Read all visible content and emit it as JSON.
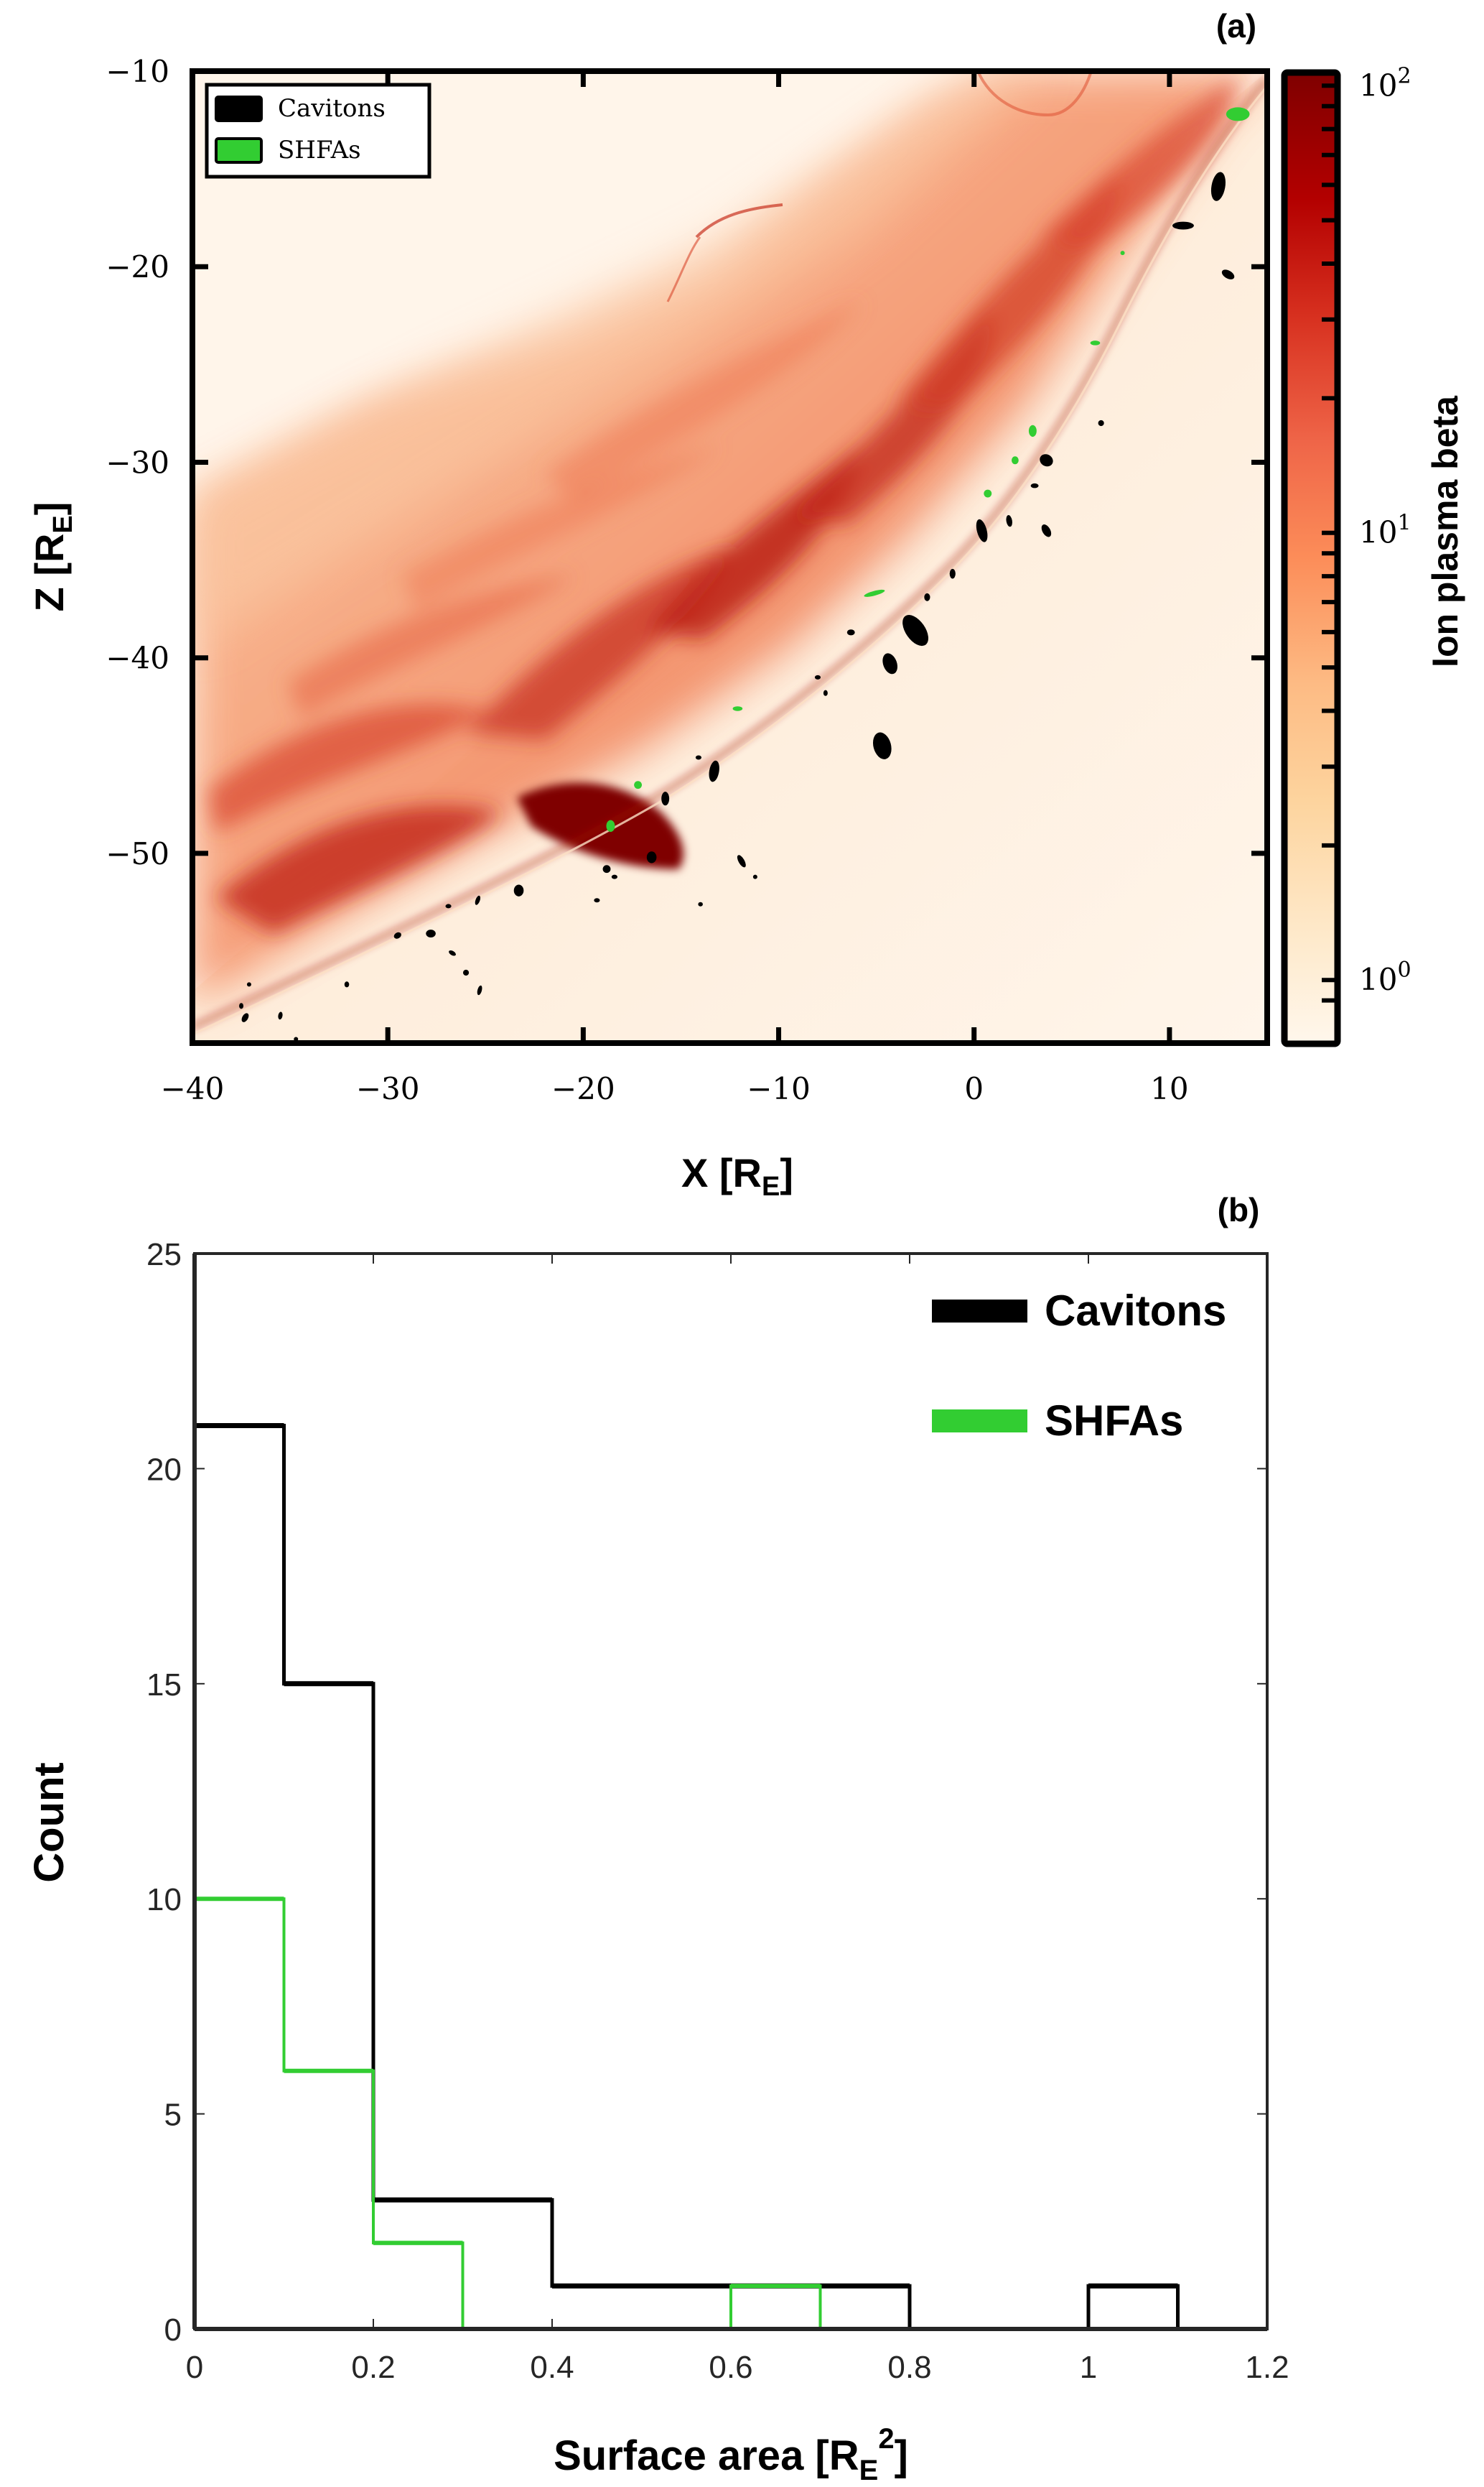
{
  "chart_data": [
    {
      "panel_label": "(a)",
      "type": "heatmap",
      "title": "",
      "xlabel": "X [R_E]",
      "xlabel_main": "X [R",
      "xlabel_sub": "E",
      "xlabel_close": "]",
      "ylabel_main": "Z [R",
      "ylabel_sub": "E",
      "ylabel_close": "]",
      "xlim": [
        -40,
        15
      ],
      "ylim": [
        -59.7,
        -10
      ],
      "xticks": [
        -40,
        -30,
        -20,
        -10,
        0,
        10
      ],
      "xtick_labels": [
        "−40",
        "−30",
        "−20",
        "−10",
        "0",
        "10"
      ],
      "yticks": [
        -10,
        -20,
        -30,
        -40,
        -50
      ],
      "ytick_labels": [
        "−10",
        "−20",
        "−30",
        "−40",
        "−50"
      ],
      "colorbar": {
        "label": "Ion plasma beta",
        "scale": "log",
        "range": [
          0.72,
          107
        ],
        "ticks": [
          1,
          10,
          100
        ],
        "tick_labels": [
          {
            "base": "10",
            "exp": "0"
          },
          {
            "base": "10",
            "exp": "1"
          },
          {
            "base": "10",
            "exp": "2"
          }
        ],
        "minor_ticks": [
          0.9,
          2,
          3,
          4,
          5,
          6,
          7,
          8,
          9,
          20,
          30,
          40,
          50,
          60,
          70,
          80,
          90
        ],
        "colormap": "OrRd",
        "colors": [
          "#fff7ec",
          "#fee8c8",
          "#fdd49e",
          "#fdbb84",
          "#fc8d59",
          "#ef6548",
          "#d7301f",
          "#b30000",
          "#7f0000"
        ]
      },
      "legend": {
        "placement": "top-left",
        "entries": [
          {
            "label": "Cavitons",
            "color": "#000000"
          },
          {
            "label": "SHFAs",
            "color": "#32cd32"
          }
        ]
      },
      "series": [
        {
          "name": "Cavitons",
          "color": "#000000",
          "points": [
            {
              "x": 12.5,
              "z": -15.9,
              "rx": 0.35,
              "rz": 0.75,
              "rot": 10
            },
            {
              "x": 10.7,
              "z": -17.9,
              "rx": 0.55,
              "rz": 0.2,
              "rot": 0
            },
            {
              "x": 13.0,
              "z": -20.4,
              "rx": 0.35,
              "rz": 0.2,
              "rot": 30
            },
            {
              "x": 6.5,
              "z": -28.0,
              "rx": 0.15,
              "rz": 0.15,
              "rot": 0
            },
            {
              "x": 3.7,
              "z": -29.9,
              "rx": 0.35,
              "rz": 0.3,
              "rot": 30
            },
            {
              "x": 3.1,
              "z": -31.2,
              "rx": 0.2,
              "rz": 0.12,
              "rot": 0
            },
            {
              "x": 0.4,
              "z": -33.5,
              "rx": 0.25,
              "rz": 0.6,
              "rot": -15
            },
            {
              "x": 1.8,
              "z": -33.0,
              "rx": 0.15,
              "rz": 0.3,
              "rot": -10
            },
            {
              "x": 3.7,
              "z": -33.5,
              "rx": 0.2,
              "rz": 0.35,
              "rot": -30
            },
            {
              "x": -1.1,
              "z": -35.7,
              "rx": 0.15,
              "rz": 0.25,
              "rot": 0
            },
            {
              "x": -2.4,
              "z": -36.9,
              "rx": 0.15,
              "rz": 0.2,
              "rot": 0
            },
            {
              "x": -3.0,
              "z": -38.6,
              "rx": 0.5,
              "rz": 0.9,
              "rot": -35
            },
            {
              "x": -6.3,
              "z": -38.7,
              "rx": 0.2,
              "rz": 0.15,
              "rot": 0
            },
            {
              "x": -4.3,
              "z": -40.3,
              "rx": 0.35,
              "rz": 0.55,
              "rot": -20
            },
            {
              "x": -8.0,
              "z": -41.0,
              "rx": 0.15,
              "rz": 0.1,
              "rot": 0
            },
            {
              "x": -7.6,
              "z": -41.8,
              "rx": 0.1,
              "rz": 0.15,
              "rot": 0
            },
            {
              "x": -4.7,
              "z": -44.5,
              "rx": 0.45,
              "rz": 0.7,
              "rot": -15
            },
            {
              "x": -13.3,
              "z": -45.8,
              "rx": 0.25,
              "rz": 0.55,
              "rot": 10
            },
            {
              "x": -14.1,
              "z": -45.1,
              "rx": 0.15,
              "rz": 0.1,
              "rot": 0
            },
            {
              "x": -15.8,
              "z": -47.2,
              "rx": 0.2,
              "rz": 0.35,
              "rot": 0
            },
            {
              "x": -16.5,
              "z": -50.2,
              "rx": 0.25,
              "rz": 0.3,
              "rot": 0
            },
            {
              "x": -11.9,
              "z": -50.4,
              "rx": 0.15,
              "rz": 0.35,
              "rot": -30
            },
            {
              "x": -18.8,
              "z": -50.8,
              "rx": 0.2,
              "rz": 0.2,
              "rot": 0
            },
            {
              "x": -18.4,
              "z": -51.2,
              "rx": 0.15,
              "rz": 0.1,
              "rot": 0
            },
            {
              "x": -11.2,
              "z": -51.2,
              "rx": 0.08,
              "rz": 0.08,
              "rot": 0
            },
            {
              "x": -23.3,
              "z": -51.9,
              "rx": 0.25,
              "rz": 0.3,
              "rot": 0
            },
            {
              "x": -25.4,
              "z": -52.4,
              "rx": 0.1,
              "rz": 0.25,
              "rot": 20
            },
            {
              "x": -19.3,
              "z": -52.4,
              "rx": 0.15,
              "rz": 0.08,
              "rot": 0
            },
            {
              "x": -14.0,
              "z": -52.6,
              "rx": 0.12,
              "rz": 0.1,
              "rot": 0
            },
            {
              "x": -26.9,
              "z": -52.7,
              "rx": 0.15,
              "rz": 0.08,
              "rot": 0
            },
            {
              "x": -27.8,
              "z": -54.1,
              "rx": 0.25,
              "rz": 0.2,
              "rot": 0
            },
            {
              "x": -29.5,
              "z": -54.2,
              "rx": 0.2,
              "rz": 0.15,
              "rot": -30
            },
            {
              "x": -26.7,
              "z": -55.1,
              "rx": 0.2,
              "rz": 0.1,
              "rot": 30
            },
            {
              "x": -26.0,
              "z": -56.1,
              "rx": 0.15,
              "rz": 0.15,
              "rot": 0
            },
            {
              "x": -25.3,
              "z": -57.0,
              "rx": 0.1,
              "rz": 0.25,
              "rot": 15
            },
            {
              "x": -32.1,
              "z": -56.7,
              "rx": 0.12,
              "rz": 0.15,
              "rot": 0
            },
            {
              "x": -37.1,
              "z": -56.7,
              "rx": 0.08,
              "rz": 0.1,
              "rot": 0
            },
            {
              "x": -37.5,
              "z": -57.8,
              "rx": 0.1,
              "rz": 0.15,
              "rot": 0
            },
            {
              "x": -37.3,
              "z": -58.4,
              "rx": 0.15,
              "rz": 0.25,
              "rot": 30
            },
            {
              "x": -35.5,
              "z": -58.3,
              "rx": 0.06,
              "rz": 0.2,
              "rot": 10
            },
            {
              "x": -34.7,
              "z": -59.5,
              "rx": 0.1,
              "rz": 0.08,
              "rot": 0
            }
          ]
        },
        {
          "name": "SHFAs",
          "color": "#32cd32",
          "points": [
            {
              "x": 13.5,
              "z": -12.2,
              "rx": 0.6,
              "rz": 0.35,
              "rot": 0
            },
            {
              "x": 7.6,
              "z": -19.3,
              "rx": 0.08,
              "rz": 0.1,
              "rot": 0
            },
            {
              "x": 6.2,
              "z": -23.9,
              "rx": 0.25,
              "rz": 0.12,
              "rot": 0
            },
            {
              "x": 3.0,
              "z": -28.4,
              "rx": 0.2,
              "rz": 0.3,
              "rot": 0
            },
            {
              "x": 2.1,
              "z": -29.9,
              "rx": 0.18,
              "rz": 0.2,
              "rot": 0
            },
            {
              "x": 0.7,
              "z": -31.6,
              "rx": 0.2,
              "rz": 0.2,
              "rot": 0
            },
            {
              "x": -5.1,
              "z": -36.7,
              "rx": 0.55,
              "rz": 0.12,
              "rot": -15
            },
            {
              "x": -12.1,
              "z": -42.6,
              "rx": 0.25,
              "rz": 0.12,
              "rot": 0
            },
            {
              "x": -17.2,
              "z": -46.5,
              "rx": 0.2,
              "rz": 0.2,
              "rot": 0
            },
            {
              "x": -18.6,
              "z": -48.6,
              "rx": 0.22,
              "rz": 0.3,
              "rot": 0
            }
          ]
        }
      ]
    },
    {
      "panel_label": "(b)",
      "type": "bar",
      "histtype": "step",
      "title": "",
      "xlabel": "Surface area [R_E^2]",
      "xlabel_main": "Surface area [R",
      "xlabel_sub": "E",
      "xlabel_sup": "2",
      "xlabel_close": "]",
      "ylabel": "Count",
      "xlim": [
        0,
        1.2
      ],
      "ylim": [
        0,
        25
      ],
      "xticks": [
        0,
        0.2,
        0.4,
        0.6,
        0.8,
        1,
        1.2
      ],
      "xtick_labels": [
        "0",
        "0.2",
        "0.4",
        "0.6",
        "0.8",
        "1",
        "1.2"
      ],
      "yticks": [
        0,
        5,
        10,
        15,
        20,
        25
      ],
      "ytick_labels": [
        "0",
        "5",
        "10",
        "15",
        "20",
        "25"
      ],
      "grid": false,
      "bin_edges": [
        0,
        0.1,
        0.2,
        0.3,
        0.4,
        0.5,
        0.6,
        0.7,
        0.8,
        0.9,
        1.0,
        1.1
      ],
      "legend": {
        "placement": "top-right",
        "entries": [
          {
            "label": "Cavitons",
            "color": "#000000"
          },
          {
            "label": "SHFAs",
            "color": "#32cd32"
          }
        ]
      },
      "series": [
        {
          "name": "Cavitons",
          "color": "#000000",
          "values": [
            21,
            15,
            3,
            3,
            1,
            1,
            1,
            1,
            0,
            0,
            1
          ]
        },
        {
          "name": "SHFAs",
          "color": "#32cd32",
          "values": [
            10,
            6,
            2,
            0,
            0,
            0,
            1,
            0,
            0,
            0,
            0
          ]
        }
      ]
    }
  ]
}
